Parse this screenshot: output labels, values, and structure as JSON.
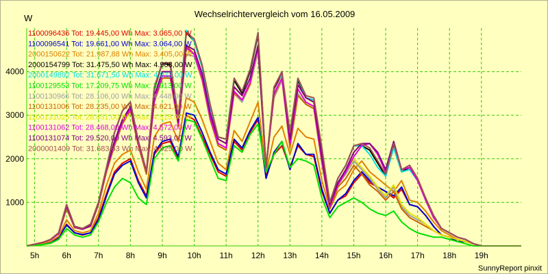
{
  "chart_data": {
    "type": "line",
    "title": "Wechselrichtervergleich vom 16.05.2009",
    "ylabel": "W",
    "xlabel": "",
    "footer": "SunnyReport pinxit",
    "x_start_hour": 4.75,
    "x_step_hours": 0.25,
    "xlim": [
      4.75,
      20.25
    ],
    "ylim": [
      0,
      5000
    ],
    "x_ticks": [
      {
        "value": 5,
        "label": "5h"
      },
      {
        "value": 6,
        "label": "6h"
      },
      {
        "value": 7,
        "label": "7h"
      },
      {
        "value": 8,
        "label": "8h"
      },
      {
        "value": 9,
        "label": "9h"
      },
      {
        "value": 10,
        "label": "10h"
      },
      {
        "value": 11,
        "label": "11h"
      },
      {
        "value": 12,
        "label": "12h"
      },
      {
        "value": 13,
        "label": "13h"
      },
      {
        "value": 14,
        "label": "14h"
      },
      {
        "value": 15,
        "label": "15h"
      },
      {
        "value": 16,
        "label": "16h"
      },
      {
        "value": 17,
        "label": "17h"
      },
      {
        "value": 18,
        "label": "18h"
      },
      {
        "value": 19,
        "label": "19h"
      }
    ],
    "y_ticks": [
      {
        "value": 1000,
        "label": "1000"
      },
      {
        "value": 2000,
        "label": "2000"
      },
      {
        "value": 3000,
        "label": "3000"
      },
      {
        "value": 4000,
        "label": "4000"
      }
    ],
    "grid": true,
    "grid_color": "#33cc00",
    "background_color": "#ffffc0",
    "legend_position": "top-left",
    "series": [
      {
        "name": "1100096436 Tot: 19.445,00 Wh Max: 3.065,00 W",
        "color": "#e00000",
        "values": [
          0,
          20,
          40,
          80,
          180,
          500,
          300,
          250,
          300,
          650,
          1200,
          1700,
          1900,
          2000,
          1500,
          1150,
          2100,
          2350,
          2400,
          2000,
          3000,
          2900,
          2500,
          2100,
          1700,
          1600,
          2400,
          2200,
          2600,
          2900,
          1600,
          2100,
          2300,
          1800,
          2300,
          2100,
          2050,
          1250,
          750,
          1050,
          1150,
          1450,
          1650,
          1450,
          1350,
          1250,
          1100,
          1300,
          950,
          900,
          700,
          450,
          250,
          200,
          100,
          100,
          50,
          0,
          0,
          0,
          0,
          0,
          0
        ]
      },
      {
        "name": "1100096541 Tot: 19.661,00 Wh Max: 3.064,00 W",
        "color": "#0000d0",
        "values": [
          0,
          20,
          40,
          80,
          200,
          480,
          300,
          260,
          300,
          600,
          1150,
          1650,
          1850,
          1950,
          1450,
          1100,
          2150,
          2400,
          2450,
          2050,
          3050,
          3000,
          2600,
          2150,
          1750,
          1650,
          2450,
          2250,
          2650,
          2950,
          1550,
          2150,
          2400,
          1750,
          2350,
          2100,
          2100,
          1300,
          750,
          1050,
          1200,
          1500,
          1700,
          1500,
          1350,
          1250,
          1150,
          1350,
          950,
          900,
          700,
          450,
          250,
          200,
          100,
          100,
          50,
          0,
          0,
          0,
          0,
          0,
          0
        ]
      },
      {
        "name": "2000150622 Tot: 21.987,88 Wh Max: 3.405,00 W",
        "color": "#e08000",
        "values": [
          0,
          30,
          60,
          100,
          220,
          600,
          350,
          300,
          350,
          750,
          1400,
          1900,
          2100,
          2200,
          1700,
          1300,
          2500,
          2800,
          2850,
          2400,
          3400,
          3300,
          2900,
          2400,
          1900,
          1750,
          2650,
          2400,
          2850,
          3300,
          1700,
          2500,
          2750,
          2100,
          2700,
          2500,
          2450,
          1500,
          850,
          1250,
          1400,
          1750,
          1950,
          1700,
          1550,
          1400,
          1250,
          1500,
          1050,
          1000,
          800,
          550,
          350,
          250,
          150,
          100,
          50,
          0,
          0,
          0,
          0,
          0,
          0
        ]
      },
      {
        "name": "2000154799 Tot: 31.475,50 Wh Max: 4.908,00 W",
        "color": "#000000",
        "values": [
          0,
          40,
          80,
          150,
          300,
          950,
          450,
          400,
          500,
          1000,
          1800,
          2600,
          3100,
          3300,
          2400,
          1700,
          3600,
          4200,
          4150,
          2900,
          4900,
          4700,
          4100,
          3200,
          2500,
          2450,
          3800,
          3500,
          4000,
          4850,
          1800,
          3600,
          3950,
          2600,
          3800,
          3400,
          3350,
          2200,
          1000,
          1550,
          1850,
          2300,
          2300,
          2200,
          1900,
          1600,
          2300,
          1700,
          1800,
          1500,
          1100,
          700,
          400,
          300,
          200,
          150,
          50,
          0,
          0,
          0,
          0,
          0,
          0
        ]
      },
      {
        "name": "2000149892 Tot: 31.671,50 Wh Max: 4.973,00 W",
        "color": "#00e0e0",
        "values": [
          0,
          40,
          80,
          150,
          300,
          950,
          450,
          400,
          500,
          1000,
          1800,
          2600,
          3100,
          3300,
          2400,
          1700,
          3650,
          4200,
          4200,
          2950,
          4950,
          4700,
          4100,
          3200,
          2500,
          2450,
          3850,
          3550,
          4050,
          4900,
          1800,
          3650,
          3950,
          2600,
          3850,
          3400,
          3350,
          2200,
          1000,
          1550,
          1850,
          2300,
          2300,
          2100,
          1800,
          1600,
          2250,
          1700,
          1750,
          1500,
          1100,
          700,
          400,
          300,
          200,
          150,
          50,
          0,
          0,
          0,
          0,
          0,
          0
        ]
      },
      {
        "name": "1100129553 Tot: 17.209,75 Wh Max: 2.913,00 W",
        "color": "#00e000",
        "values": [
          0,
          10,
          30,
          60,
          150,
          400,
          250,
          200,
          250,
          550,
          1000,
          1350,
          1550,
          1450,
          1100,
          950,
          2000,
          2250,
          2300,
          1950,
          2900,
          2850,
          2450,
          2000,
          1550,
          1500,
          2300,
          2150,
          2550,
          2800,
          1700,
          2100,
          2400,
          1800,
          2000,
          1950,
          1850,
          1100,
          650,
          900,
          1000,
          1100,
          1000,
          850,
          750,
          700,
          800,
          550,
          400,
          300,
          250,
          200,
          200,
          150,
          100,
          50,
          0,
          0,
          0,
          0,
          0,
          0,
          0
        ]
      },
      {
        "name": "1100130966 Tot: 28.106,00 Wh Max: 4.448,00 W",
        "color": "#a0a0a0",
        "values": [
          0,
          40,
          80,
          140,
          280,
          900,
          420,
          380,
          450,
          950,
          1700,
          2300,
          2800,
          3100,
          2300,
          1650,
          3300,
          3900,
          3850,
          2750,
          4400,
          4350,
          3800,
          2900,
          2300,
          2200,
          3500,
          3300,
          3700,
          4450,
          1800,
          3400,
          3800,
          2300,
          3500,
          3250,
          3150,
          1900,
          900,
          1400,
          1650,
          1950,
          1750,
          1550,
          1300,
          1100,
          1350,
          900,
          700,
          600,
          500,
          350,
          250,
          200,
          150,
          100,
          50,
          0,
          0,
          0,
          0,
          0,
          0
        ]
      },
      {
        "name": "1100131006 Tot: 28.235,00 Wh Max: 4.621,00 W",
        "color": "#c86400",
        "values": [
          0,
          40,
          80,
          140,
          280,
          850,
          420,
          380,
          450,
          950,
          1700,
          2300,
          2800,
          3100,
          2300,
          1650,
          3300,
          3850,
          3850,
          2750,
          4600,
          4400,
          3800,
          2900,
          2300,
          2200,
          3500,
          3350,
          3700,
          4600,
          1800,
          3450,
          3850,
          2250,
          3450,
          3250,
          3150,
          1900,
          850,
          1350,
          1550,
          1850,
          1650,
          1400,
          1250,
          1050,
          1250,
          850,
          650,
          550,
          450,
          350,
          250,
          200,
          150,
          100,
          50,
          0,
          0,
          0,
          0,
          0,
          0
        ]
      },
      {
        "name": "1100131025 Tot: 28.451,00 Wh Max: 4.515,00 W",
        "color": "#e0e000",
        "values": [
          0,
          40,
          80,
          140,
          280,
          900,
          430,
          380,
          460,
          980,
          1750,
          2350,
          2850,
          3150,
          2350,
          1700,
          3350,
          3900,
          3900,
          2800,
          4500,
          4400,
          3850,
          2950,
          2350,
          2250,
          3550,
          3350,
          3750,
          4500,
          1800,
          3500,
          3850,
          2350,
          3600,
          3300,
          3200,
          1950,
          900,
          1400,
          1700,
          2000,
          1800,
          1600,
          1350,
          1150,
          1400,
          950,
          750,
          650,
          500,
          350,
          250,
          200,
          150,
          100,
          50,
          0,
          0,
          0,
          0,
          0,
          0
        ]
      },
      {
        "name": "1100131062 Tot: 28.468,00 Wh Max: 4.572,00 W",
        "color": "#e000e0",
        "values": [
          0,
          40,
          80,
          140,
          280,
          900,
          430,
          380,
          460,
          980,
          1750,
          2350,
          2850,
          3150,
          2350,
          1700,
          3350,
          3900,
          3900,
          2800,
          4550,
          4400,
          3850,
          2950,
          2350,
          2250,
          3550,
          3350,
          3750,
          4550,
          1800,
          3500,
          3850,
          2350,
          3600,
          3300,
          3200,
          1950,
          900,
          1400,
          1700,
          2050,
          2300,
          2350,
          2100,
          1700,
          2350,
          1750,
          1800,
          1500,
          1050,
          650,
          400,
          300,
          200,
          150,
          50,
          0,
          0,
          0,
          0,
          0,
          0
        ]
      },
      {
        "name": "1100131074 Tot: 29.520,00 Wh Max: 4.593,00 W",
        "color": "#800080",
        "values": [
          0,
          40,
          80,
          150,
          300,
          920,
          440,
          390,
          470,
          1000,
          1780,
          2400,
          2900,
          3200,
          2400,
          1720,
          3450,
          4000,
          4000,
          2850,
          4600,
          4500,
          3950,
          3050,
          2450,
          2350,
          3650,
          3450,
          3850,
          4600,
          1800,
          3600,
          4000,
          2450,
          3700,
          3400,
          3300,
          2050,
          950,
          1450,
          1750,
          2150,
          2350,
          2350,
          2150,
          1750,
          2400,
          1750,
          1850,
          1550,
          1100,
          700,
          400,
          300,
          200,
          150,
          50,
          0,
          0,
          0,
          0,
          0,
          0
        ]
      },
      {
        "name": "2000001409 Tot: 31.683,63 Wh Max: 4.925,00 W",
        "color": "#a05050",
        "values": [
          0,
          40,
          80,
          150,
          300,
          950,
          450,
          400,
          500,
          1000,
          1800,
          2600,
          3100,
          3300,
          2400,
          1700,
          3650,
          4200,
          4200,
          2950,
          4900,
          4750,
          4150,
          3250,
          2500,
          2450,
          3850,
          3550,
          4050,
          4900,
          1800,
          3650,
          4000,
          2600,
          3850,
          3450,
          3400,
          2250,
          1000,
          1550,
          1850,
          2300,
          2350,
          2250,
          1950,
          1650,
          2350,
          1750,
          1850,
          1550,
          1100,
          700,
          400,
          300,
          200,
          150,
          50,
          0,
          0,
          0,
          0,
          0,
          0
        ]
      }
    ]
  }
}
